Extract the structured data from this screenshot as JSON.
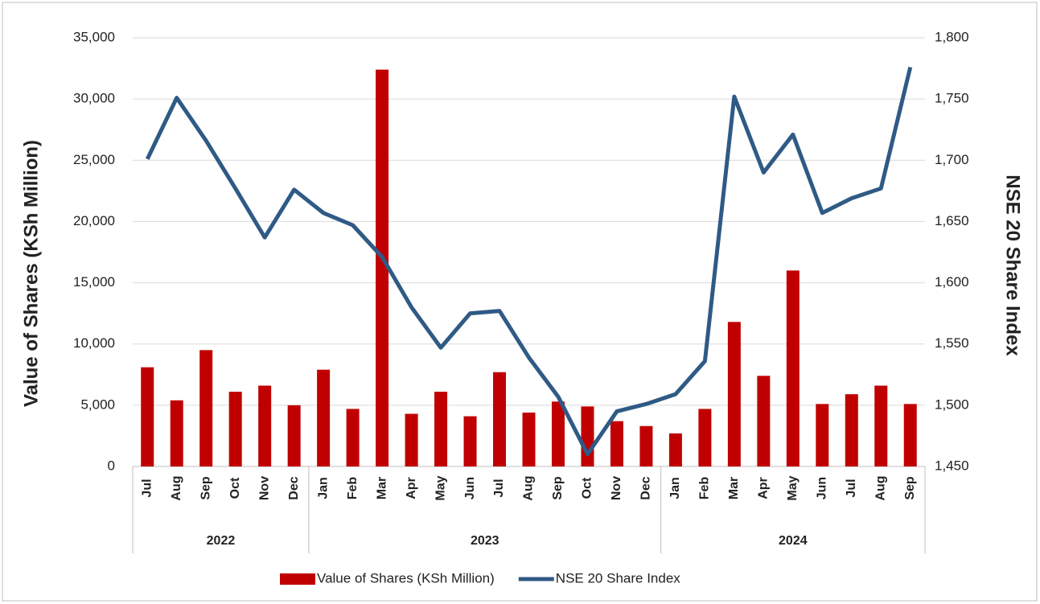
{
  "chart_data": {
    "type": "bar-line",
    "y_label": "Value of Shares (KSh Million)",
    "y2_label": "NSE 20 Share Index",
    "groups": [
      {
        "name": "2022",
        "categories": [
          "Jul",
          "Aug",
          "Sep",
          "Oct",
          "Nov",
          "Dec"
        ]
      },
      {
        "name": "2023",
        "categories": [
          "Jan",
          "Feb",
          "Mar",
          "Apr",
          "May",
          "Jun",
          "Jul",
          "Aug",
          "Sep",
          "Oct",
          "Nov",
          "Dec"
        ]
      },
      {
        "name": "2024",
        "categories": [
          "Jan",
          "Feb",
          "Mar",
          "Apr",
          "May",
          "Jun",
          "Jul",
          "Aug",
          "Sep"
        ]
      }
    ],
    "series": [
      {
        "name": "Value of Shares (KSh Million)",
        "type": "bar",
        "color": "#c00000",
        "values": [
          8100,
          5400,
          9500,
          6100,
          6600,
          5000,
          7900,
          4700,
          32400,
          4300,
          6100,
          4100,
          7700,
          4400,
          5300,
          4900,
          3700,
          3300,
          2700,
          4700,
          11800,
          7400,
          16000,
          5100,
          5900,
          6600,
          5100
        ]
      },
      {
        "name": "NSE 20 Share Index",
        "type": "line",
        "axis": "y2",
        "color": "#2f5a85",
        "values": [
          1701,
          1751,
          1716,
          1677,
          1637,
          1676,
          1657,
          1647,
          1621,
          1580,
          1547,
          1575,
          1577,
          1539,
          1507,
          1460,
          1495,
          1501,
          1509,
          1536,
          1752,
          1690,
          1721,
          1657,
          1669,
          1677,
          1776
        ]
      }
    ],
    "ylim": [
      0,
      35000
    ],
    "yticks": [
      0,
      {
        "value": 5000,
        "label": "5,000"
      },
      {
        "value": 10000,
        "label": "10,000"
      },
      {
        "value": 15000,
        "label": "15,000"
      },
      {
        "value": 20000,
        "label": "20,000"
      },
      {
        "value": 25000,
        "label": "25,000"
      },
      {
        "value": 30000,
        "label": "30,000"
      },
      {
        "value": 35000,
        "label": "35,000"
      }
    ],
    "y2lim": [
      1450,
      1800
    ],
    "y2ticks": [
      {
        "value": 1450,
        "label": "1,450"
      },
      {
        "value": 1500,
        "label": "1,500"
      },
      {
        "value": 1550,
        "label": "1,550"
      },
      {
        "value": 1600,
        "label": "1,600"
      },
      {
        "value": 1650,
        "label": "1,650"
      },
      {
        "value": 1700,
        "label": "1,700"
      },
      {
        "value": 1750,
        "label": "1,750"
      },
      {
        "value": 1800,
        "label": "1,800"
      }
    ],
    "grid": true,
    "legend": "bottom"
  }
}
